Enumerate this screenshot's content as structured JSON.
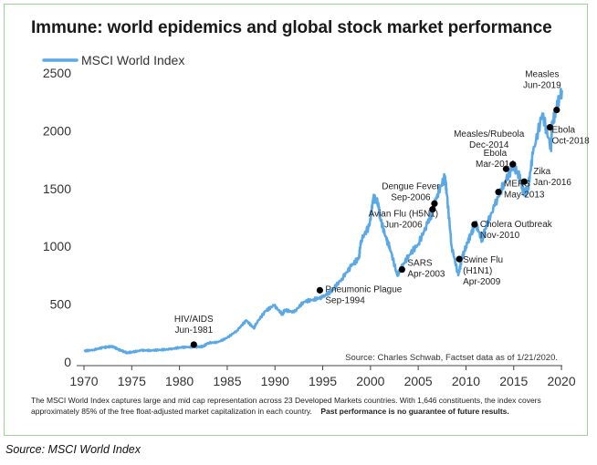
{
  "title": "Immune: world epidemics and global stock market performance",
  "chart_data": {
    "type": "line",
    "title": "Immune: world epidemics and global stock market performance",
    "legend": {
      "position": "top-left",
      "entries": [
        "MSCI World Index"
      ]
    },
    "series": [
      {
        "name": "MSCI World Index",
        "color": "#5aa9e6",
        "x": [
          1970,
          1971,
          1972,
          1972.5,
          1973,
          1973.5,
          1974,
          1974.5,
          1975,
          1976,
          1977,
          1978,
          1979,
          1980,
          1981,
          1982,
          1982.5,
          1983,
          1984,
          1985,
          1986,
          1987,
          1987.8,
          1988,
          1989,
          1989.9,
          1990.8,
          1991,
          1992,
          1993,
          1994,
          1995,
          1996,
          1997,
          1998,
          1998.8,
          1999,
          1999.9,
          2000.3,
          2000.8,
          2001,
          2001.7,
          2002,
          2002.8,
          2003.2,
          2004,
          2005,
          2006,
          2006.5,
          2007,
          2007.8,
          2008,
          2008.5,
          2009.2,
          2009.6,
          2010,
          2010.5,
          2011,
          2011.7,
          2012,
          2013,
          2014,
          2015,
          2015.6,
          2016.1,
          2016.5,
          2017,
          2018,
          2018.9,
          2019,
          2019.5,
          2020.05
        ],
        "values": [
          95,
          105,
          125,
          130,
          135,
          112,
          95,
          80,
          85,
          100,
          100,
          105,
          110,
          125,
          130,
          130,
          135,
          165,
          170,
          210,
          270,
          360,
          290,
          330,
          440,
          490,
          410,
          450,
          430,
          520,
          540,
          560,
          620,
          720,
          830,
          900,
          1050,
          1180,
          1420,
          1380,
          1250,
          1050,
          1000,
          750,
          810,
          920,
          1020,
          1200,
          1300,
          1450,
          1600,
          1450,
          1000,
          750,
          900,
          1000,
          1100,
          1200,
          1050,
          1150,
          1350,
          1550,
          1700,
          1600,
          1450,
          1500,
          1800,
          2150,
          1850,
          2050,
          2200,
          2350
        ]
      }
    ],
    "xlim": [
      1970,
      2022
    ],
    "ylim": [
      0,
      2500
    ],
    "x_ticks": [
      1970,
      1975,
      1980,
      1985,
      1990,
      1995,
      2000,
      2005,
      2010,
      2015,
      2020
    ],
    "y_ticks": [
      0,
      500,
      1000,
      1500,
      2000,
      2500
    ],
    "grid": false,
    "annotations": [
      {
        "lines": [
          "HIV/AIDS",
          "Jun-1981"
        ],
        "x": 1981.5,
        "y": 150
      },
      {
        "lines": [
          "Pneumonic Plague",
          "Sep-1994"
        ],
        "x": 1994.7,
        "y": 620
      },
      {
        "lines": [
          "SARS",
          "Apr-2003"
        ],
        "x": 2003.3,
        "y": 800
      },
      {
        "lines": [
          "Dengue Fever",
          "Sep-2006"
        ],
        "x": 2006.7,
        "y": 1370
      },
      {
        "lines": [
          "Avian Flu (H5N1)",
          "Jun-2006"
        ],
        "x": 2006.5,
        "y": 1320
      },
      {
        "lines": [
          "Swine Flu",
          "(H1N1)",
          "Apr-2009"
        ],
        "x": 2009.3,
        "y": 890
      },
      {
        "lines": [
          "Cholera Outbreak",
          "Nov-2010"
        ],
        "x": 2010.9,
        "y": 1190
      },
      {
        "lines": [
          "MERS",
          "May-2013"
        ],
        "x": 2013.4,
        "y": 1470
      },
      {
        "lines": [
          "Ebola",
          "Mar-2014"
        ],
        "x": 2014.2,
        "y": 1670
      },
      {
        "lines": [
          "Measles/Rubeola",
          "Dec-2014"
        ],
        "x": 2014.9,
        "y": 1710
      },
      {
        "lines": [
          "Zika",
          "Jan-2016"
        ],
        "x": 2016.1,
        "y": 1560
      },
      {
        "lines": [
          "Ebola",
          "Oct-2018"
        ],
        "x": 2018.8,
        "y": 2030
      },
      {
        "lines": [
          "Measles",
          "Jun-2019"
        ],
        "x": 2019.5,
        "y": 2180
      }
    ],
    "source_note": "Source: Charles Schwab, Factset data as of 1/21/2020."
  },
  "footnote": {
    "text": "The MSCI World Index captures large and mid cap representation across 23 Developed Markets countries. With 1,646 constituents, the index covers approximately 85% of the free float-adjusted market capitalization in each country.",
    "emphasis": "Past performance is no guarantee of future results."
  },
  "caption": "Source: MSCI World Index"
}
